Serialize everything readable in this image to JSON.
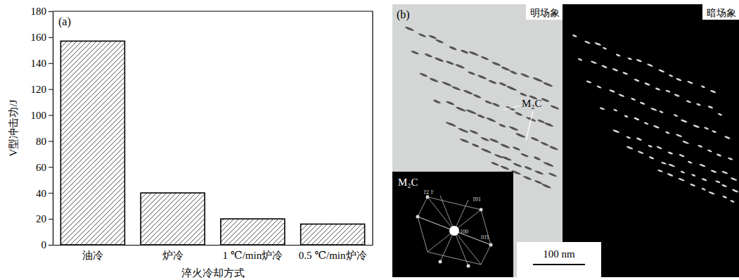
{
  "chart_data": {
    "type": "bar",
    "title": "(a)",
    "x_label": "淬火冷却方式",
    "y_label": "V型冲击功/J",
    "categories": [
      "油冷",
      "炉冷",
      "1 ℃/min炉冷",
      "0.5 ℃/min炉冷"
    ],
    "values": [
      157,
      40,
      20,
      16
    ],
    "color": "#555555",
    "ylim": [
      0,
      180
    ],
    "yticks": [
      0,
      20,
      40,
      60,
      80,
      100,
      120,
      140,
      160,
      180
    ],
    "grid": false
  },
  "micrograph": {
    "label": "(b)",
    "bright_field": "明场象",
    "dark_field": "暗场象",
    "phase_label": "M₂C",
    "inset_label": "M₂C",
    "diffraction_indices": [
      "1̄2 1̄",
      "1̄01",
      "01̄1",
      "100"
    ],
    "scale_bar": "100 nm"
  }
}
